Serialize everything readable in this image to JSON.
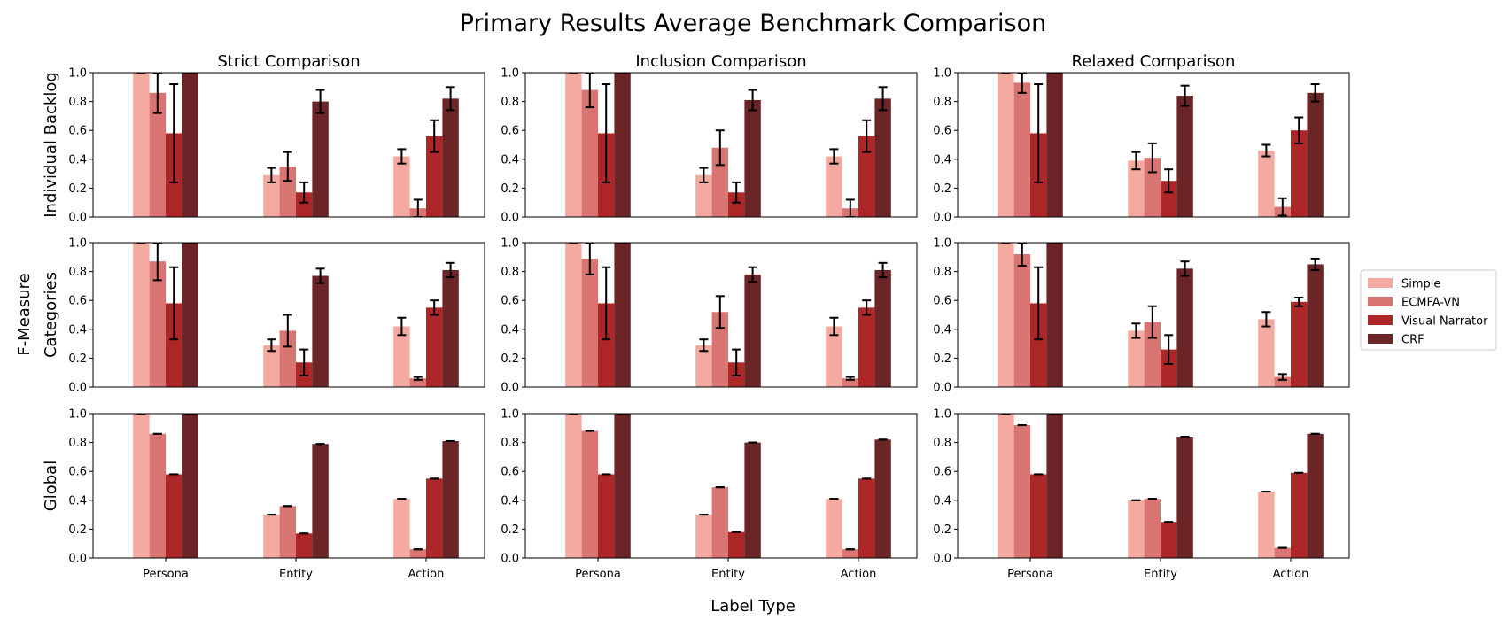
{
  "figure": {
    "title": "Primary Results Average Benchmark Comparison",
    "xlabel": "Label Type",
    "ylabel": "F-Measure",
    "column_titles": [
      "Strict Comparison",
      "Inclusion Comparison",
      "Relaxed Comparison"
    ],
    "row_labels": [
      "Individual Backlog",
      "Categories",
      "Global"
    ]
  },
  "legend": {
    "placement": "right",
    "entries": [
      {
        "name": "Simple",
        "color": "#f4aaa0"
      },
      {
        "name": "ECMFA-VN",
        "color": "#d87472"
      },
      {
        "name": "Visual Narrator",
        "color": "#ad2728"
      },
      {
        "name": "CRF",
        "color": "#6b2526"
      }
    ]
  },
  "chart_data": {
    "type": "bar",
    "categories": [
      "Persona",
      "Entity",
      "Action"
    ],
    "ylim": [
      0,
      1
    ],
    "yticks": [
      "0.0",
      "0.2",
      "0.4",
      "0.6",
      "0.8",
      "1.0"
    ],
    "grid": false,
    "legend_placement": "right",
    "panels": [
      {
        "row": "Individual Backlog",
        "col": "Strict Comparison",
        "series": [
          {
            "name": "Simple",
            "values": [
              1.0,
              0.29,
              0.42
            ],
            "errors": [
              0.0,
              0.05,
              0.05
            ]
          },
          {
            "name": "ECMFA-VN",
            "values": [
              0.86,
              0.35,
              0.06
            ],
            "errors": [
              0.14,
              0.1,
              0.06
            ]
          },
          {
            "name": "Visual Narrator",
            "values": [
              0.58,
              0.17,
              0.56
            ],
            "errors": [
              0.34,
              0.07,
              0.11
            ]
          },
          {
            "name": "CRF",
            "values": [
              1.0,
              0.8,
              0.82
            ],
            "errors": [
              0.0,
              0.08,
              0.08
            ]
          }
        ]
      },
      {
        "row": "Individual Backlog",
        "col": "Inclusion Comparison",
        "series": [
          {
            "name": "Simple",
            "values": [
              1.0,
              0.29,
              0.42
            ],
            "errors": [
              0.0,
              0.05,
              0.05
            ]
          },
          {
            "name": "ECMFA-VN",
            "values": [
              0.88,
              0.48,
              0.06
            ],
            "errors": [
              0.12,
              0.12,
              0.06
            ]
          },
          {
            "name": "Visual Narrator",
            "values": [
              0.58,
              0.17,
              0.56
            ],
            "errors": [
              0.34,
              0.07,
              0.11
            ]
          },
          {
            "name": "CRF",
            "values": [
              1.0,
              0.81,
              0.82
            ],
            "errors": [
              0.0,
              0.07,
              0.08
            ]
          }
        ]
      },
      {
        "row": "Individual Backlog",
        "col": "Relaxed Comparison",
        "series": [
          {
            "name": "Simple",
            "values": [
              1.0,
              0.39,
              0.46
            ],
            "errors": [
              0.0,
              0.06,
              0.04
            ]
          },
          {
            "name": "ECMFA-VN",
            "values": [
              0.93,
              0.41,
              0.07
            ],
            "errors": [
              0.07,
              0.1,
              0.06
            ]
          },
          {
            "name": "Visual Narrator",
            "values": [
              0.58,
              0.25,
              0.6
            ],
            "errors": [
              0.34,
              0.08,
              0.09
            ]
          },
          {
            "name": "CRF",
            "values": [
              1.0,
              0.84,
              0.86
            ],
            "errors": [
              0.0,
              0.07,
              0.06
            ]
          }
        ]
      },
      {
        "row": "Categories",
        "col": "Strict Comparison",
        "series": [
          {
            "name": "Simple",
            "values": [
              1.0,
              0.29,
              0.42
            ],
            "errors": [
              0.0,
              0.04,
              0.06
            ]
          },
          {
            "name": "ECMFA-VN",
            "values": [
              0.87,
              0.39,
              0.06
            ],
            "errors": [
              0.13,
              0.11,
              0.01
            ]
          },
          {
            "name": "Visual Narrator",
            "values": [
              0.58,
              0.17,
              0.55
            ],
            "errors": [
              0.25,
              0.09,
              0.05
            ]
          },
          {
            "name": "CRF",
            "values": [
              1.0,
              0.77,
              0.81
            ],
            "errors": [
              0.0,
              0.05,
              0.05
            ]
          }
        ]
      },
      {
        "row": "Categories",
        "col": "Inclusion Comparison",
        "series": [
          {
            "name": "Simple",
            "values": [
              1.0,
              0.29,
              0.42
            ],
            "errors": [
              0.0,
              0.04,
              0.06
            ]
          },
          {
            "name": "ECMFA-VN",
            "values": [
              0.89,
              0.52,
              0.06
            ],
            "errors": [
              0.11,
              0.11,
              0.01
            ]
          },
          {
            "name": "Visual Narrator",
            "values": [
              0.58,
              0.17,
              0.55
            ],
            "errors": [
              0.25,
              0.09,
              0.05
            ]
          },
          {
            "name": "CRF",
            "values": [
              1.0,
              0.78,
              0.81
            ],
            "errors": [
              0.0,
              0.05,
              0.05
            ]
          }
        ]
      },
      {
        "row": "Categories",
        "col": "Relaxed Comparison",
        "series": [
          {
            "name": "Simple",
            "values": [
              1.0,
              0.39,
              0.47
            ],
            "errors": [
              0.0,
              0.05,
              0.05
            ]
          },
          {
            "name": "ECMFA-VN",
            "values": [
              0.92,
              0.45,
              0.07
            ],
            "errors": [
              0.08,
              0.11,
              0.02
            ]
          },
          {
            "name": "Visual Narrator",
            "values": [
              0.58,
              0.26,
              0.59
            ],
            "errors": [
              0.25,
              0.1,
              0.03
            ]
          },
          {
            "name": "CRF",
            "values": [
              1.0,
              0.82,
              0.85
            ],
            "errors": [
              0.0,
              0.05,
              0.04
            ]
          }
        ]
      },
      {
        "row": "Global",
        "col": "Strict Comparison",
        "series": [
          {
            "name": "Simple",
            "values": [
              1.0,
              0.3,
              0.41
            ],
            "errors": [
              0.0,
              0.0,
              0.0
            ]
          },
          {
            "name": "ECMFA-VN",
            "values": [
              0.86,
              0.36,
              0.06
            ],
            "errors": [
              0.0,
              0.0,
              0.0
            ]
          },
          {
            "name": "Visual Narrator",
            "values": [
              0.58,
              0.17,
              0.55
            ],
            "errors": [
              0.0,
              0.0,
              0.0
            ]
          },
          {
            "name": "CRF",
            "values": [
              1.0,
              0.79,
              0.81
            ],
            "errors": [
              0.0,
              0.0,
              0.0
            ]
          }
        ]
      },
      {
        "row": "Global",
        "col": "Inclusion Comparison",
        "series": [
          {
            "name": "Simple",
            "values": [
              1.0,
              0.3,
              0.41
            ],
            "errors": [
              0.0,
              0.0,
              0.0
            ]
          },
          {
            "name": "ECMFA-VN",
            "values": [
              0.88,
              0.49,
              0.06
            ],
            "errors": [
              0.0,
              0.0,
              0.0
            ]
          },
          {
            "name": "Visual Narrator",
            "values": [
              0.58,
              0.18,
              0.55
            ],
            "errors": [
              0.0,
              0.0,
              0.0
            ]
          },
          {
            "name": "CRF",
            "values": [
              1.0,
              0.8,
              0.82
            ],
            "errors": [
              0.0,
              0.0,
              0.0
            ]
          }
        ]
      },
      {
        "row": "Global",
        "col": "Relaxed Comparison",
        "series": [
          {
            "name": "Simple",
            "values": [
              1.0,
              0.4,
              0.46
            ],
            "errors": [
              0.0,
              0.0,
              0.0
            ]
          },
          {
            "name": "ECMFA-VN",
            "values": [
              0.92,
              0.41,
              0.07
            ],
            "errors": [
              0.0,
              0.0,
              0.0
            ]
          },
          {
            "name": "Visual Narrator",
            "values": [
              0.58,
              0.25,
              0.59
            ],
            "errors": [
              0.0,
              0.0,
              0.0
            ]
          },
          {
            "name": "CRF",
            "values": [
              1.0,
              0.84,
              0.86
            ],
            "errors": [
              0.0,
              0.0,
              0.0
            ]
          }
        ]
      }
    ]
  }
}
